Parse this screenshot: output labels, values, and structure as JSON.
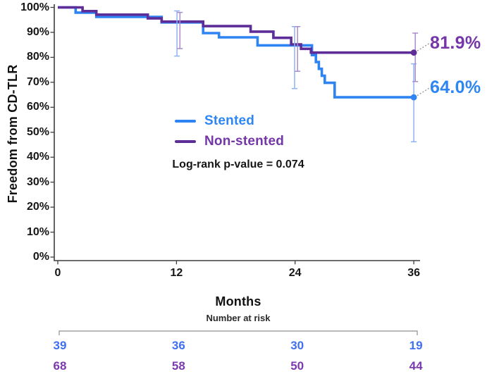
{
  "figure_title": "",
  "colors": {
    "axis": "#3d3d3d",
    "bracket": "#8f8f8f",
    "leader": "#888888",
    "text": "#151515"
  },
  "chart_data": {
    "type": "line",
    "subtype": "kaplan-meier-step",
    "title": "",
    "xlabel": "Months",
    "ylabel": "Freedom from CD-TLR",
    "xlim": [
      0,
      36
    ],
    "ylim": [
      0,
      100
    ],
    "grid": false,
    "legend_position": "center-upper",
    "x_ticks": [
      {
        "value": 0,
        "label": "0"
      },
      {
        "value": 12,
        "label": "12"
      },
      {
        "value": 24,
        "label": "24"
      },
      {
        "value": 36,
        "label": "36"
      }
    ],
    "y_ticks": [
      {
        "value": 0,
        "label": "0%"
      },
      {
        "value": 10,
        "label": "10%"
      },
      {
        "value": 20,
        "label": "20%"
      },
      {
        "value": 30,
        "label": "30%"
      },
      {
        "value": 40,
        "label": "40%"
      },
      {
        "value": 50,
        "label": "50%"
      },
      {
        "value": 60,
        "label": "60%"
      },
      {
        "value": 70,
        "label": "70%"
      },
      {
        "value": 80,
        "label": "80%"
      },
      {
        "value": 90,
        "label": "90%"
      },
      {
        "value": 100,
        "label": "100%"
      }
    ],
    "series": [
      {
        "name": "Stented",
        "color": "#2E84F3",
        "ci_color": "#8FB2F3",
        "number_color": "#3F70F0",
        "label_color": "#2E86F3",
        "final_value": 64.0,
        "final_label": "64.0%",
        "steps": [
          [
            0,
            100
          ],
          [
            1.8,
            97.9
          ],
          [
            3.9,
            96.2
          ],
          [
            10.5,
            94.0
          ],
          [
            14.7,
            89.7
          ],
          [
            16.3,
            88.0
          ],
          [
            20.2,
            84.8
          ],
          [
            25.7,
            80.9
          ],
          [
            26.1,
            78.1
          ],
          [
            26.4,
            75.4
          ],
          [
            26.7,
            72.6
          ],
          [
            27.0,
            69.8
          ],
          [
            28.0,
            64.0
          ],
          [
            36,
            64.0
          ]
        ]
      },
      {
        "name": "Non-stented",
        "color": "#5F2D98",
        "ci_color": "#A98CCB",
        "number_color": "#7B3AAD",
        "label_color": "#7537A8",
        "final_value": 81.9,
        "final_label": "81.9%",
        "steps": [
          [
            0,
            100
          ],
          [
            2.5,
            98.5
          ],
          [
            3.9,
            97.1
          ],
          [
            9.1,
            95.6
          ],
          [
            10.5,
            94.3
          ],
          [
            14.7,
            92.5
          ],
          [
            19.5,
            90.3
          ],
          [
            21.8,
            87.8
          ],
          [
            23.6,
            85.2
          ],
          [
            24.6,
            83.4
          ],
          [
            25.6,
            81.9
          ],
          [
            36,
            81.9
          ]
        ]
      }
    ],
    "error_bars": [
      {
        "series": 0,
        "x": 12.05,
        "low": 80.5,
        "high": 98.6
      },
      {
        "series": 1,
        "x": 12.35,
        "low": 83.5,
        "high": 98.0
      },
      {
        "series": 0,
        "x": 23.95,
        "low": 67.5,
        "high": 92.3
      },
      {
        "series": 1,
        "x": 24.25,
        "low": 74.4,
        "high": 92.3
      },
      {
        "series": 0,
        "x": 36.0,
        "low": 46.2,
        "high": 77.4
      },
      {
        "series": 1,
        "x": 36.15,
        "low": 70.3,
        "high": 89.7
      }
    ],
    "annotations": {
      "log_rank": "Log-rank p-value = 0.074"
    },
    "at_risk": {
      "title": "Number at risk",
      "times": [
        0,
        12,
        24,
        36
      ],
      "rows": [
        {
          "series": 0,
          "name": "Stented",
          "values": [
            "39",
            "36",
            "30",
            "19"
          ]
        },
        {
          "series": 1,
          "name": "Non-stented",
          "values": [
            "68",
            "58",
            "50",
            "44"
          ]
        }
      ]
    }
  }
}
